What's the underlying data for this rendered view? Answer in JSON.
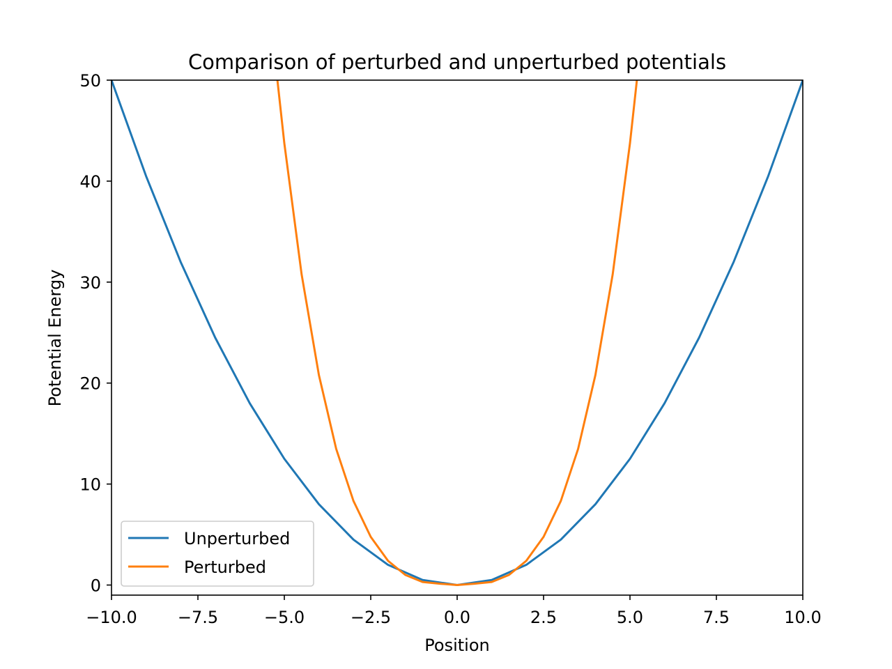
{
  "chart_data": {
    "type": "line",
    "title": "Comparison of perturbed and unperturbed potentials",
    "xlabel": "Position",
    "ylabel": "Potential Energy",
    "xlim": [
      -10,
      10
    ],
    "ylim": [
      -1,
      50
    ],
    "x_ticks": [
      -10,
      -7.5,
      -5,
      -2.5,
      0,
      2.5,
      5,
      7.5,
      10
    ],
    "x_tick_labels": [
      "−10.0",
      "−7.5",
      "−5.0",
      "−2.5",
      "0.0",
      "2.5",
      "5.0",
      "7.5",
      "10.0"
    ],
    "y_ticks": [
      0,
      10,
      20,
      30,
      40,
      50
    ],
    "y_tick_labels": [
      "0",
      "10",
      "20",
      "30",
      "40",
      "50"
    ],
    "grid": false,
    "legend_position": "lower-left",
    "series": [
      {
        "name": "Unperturbed",
        "color": "#1f77b4",
        "x": [
          -10,
          -9,
          -8,
          -7,
          -6,
          -5,
          -4,
          -3,
          -2,
          -1,
          0,
          1,
          2,
          3,
          4,
          5,
          6,
          7,
          8,
          9,
          10
        ],
        "y": [
          50,
          40.5,
          32,
          24.5,
          18,
          12.5,
          8,
          4.5,
          2,
          0.5,
          0,
          0.5,
          2,
          4.5,
          8,
          12.5,
          18,
          24.5,
          32,
          40.5,
          50
        ]
      },
      {
        "name": "Perturbed",
        "color": "#ff7f0e",
        "x": [
          -5.2,
          -5,
          -4.5,
          -4,
          -3.5,
          -3,
          -2.5,
          -2,
          -1.5,
          -1,
          -0.5,
          0,
          0.5,
          1,
          1.5,
          2,
          2.5,
          3,
          3.5,
          4,
          4.5,
          5,
          5.2
        ],
        "y": [
          50.0,
          43.75,
          30.77,
          20.8,
          13.49,
          8.33,
          4.77,
          2.4,
          1.0,
          0.3,
          0.13,
          0,
          0.13,
          0.3,
          1.0,
          2.4,
          4.77,
          8.33,
          13.49,
          20.8,
          30.77,
          43.75,
          50.0
        ]
      }
    ]
  }
}
